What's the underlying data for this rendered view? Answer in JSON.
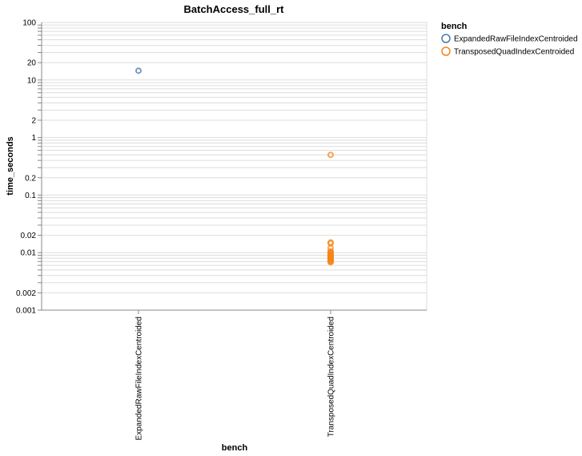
{
  "chart_data": {
    "type": "scatter",
    "title": "BatchAccess_full_rt",
    "xlabel": "bench",
    "ylabel": "time_seconds",
    "yscale": "log",
    "ylim": [
      0.001,
      100
    ],
    "y_tick_labels": [
      "100",
      "20",
      "10",
      "2",
      "1",
      "0.2",
      "0.1",
      "0.02",
      "0.01",
      "0.002",
      "0.001"
    ],
    "y_tick_values": [
      100,
      20,
      10,
      2,
      1,
      0.2,
      0.1,
      0.02,
      0.01,
      0.002,
      0.001
    ],
    "grid": true,
    "categories": [
      "ExpandedRawFileIndexCentroided",
      "TransposedQuadIndexCentroided"
    ],
    "legend": {
      "title": "bench",
      "position": "top-right"
    },
    "series": [
      {
        "name": "ExpandedRawFileIndexCentroided",
        "color": "#4c78a8",
        "x": "ExpandedRawFileIndexCentroided",
        "values": [
          14.5
        ]
      },
      {
        "name": "TransposedQuadIndexCentroided",
        "color": "#f58518",
        "x": "TransposedQuadIndexCentroided",
        "values": [
          0.5,
          0.015,
          0.0145,
          0.012,
          0.0105,
          0.0102,
          0.0098,
          0.0095,
          0.0092,
          0.009,
          0.0088,
          0.0086,
          0.0084,
          0.0082,
          0.008,
          0.0078,
          0.0076,
          0.0074,
          0.0072,
          0.007,
          0.0068
        ]
      }
    ]
  }
}
